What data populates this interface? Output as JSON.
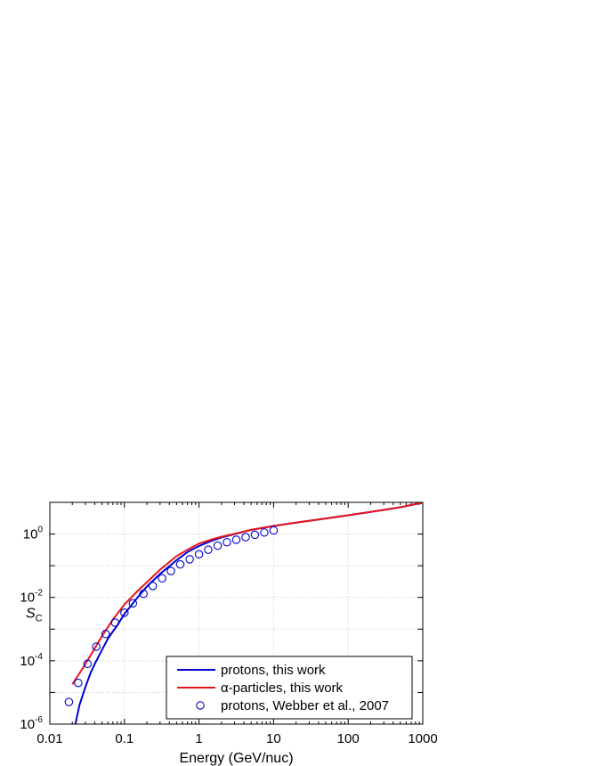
{
  "chart_data": {
    "type": "line",
    "xlabel": "Energy (GeV/nuc)",
    "ylabel_main": "S",
    "ylabel_sub": "C",
    "xscale": "log",
    "yscale": "log",
    "xlim": [
      0.01,
      1000
    ],
    "ylim": [
      1e-06,
      10
    ],
    "grid": true,
    "legend_position": "bottom-right",
    "x_ticks": [
      {
        "value": 0.01,
        "label": "0.01"
      },
      {
        "value": 0.1,
        "label": "0.1"
      },
      {
        "value": 1,
        "label": "1"
      },
      {
        "value": 10,
        "label": "10"
      },
      {
        "value": 100,
        "label": "100"
      },
      {
        "value": 1000,
        "label": "1000"
      }
    ],
    "y_ticks": [
      {
        "value": 1e-06,
        "base": "10",
        "exp": "-6"
      },
      {
        "value": 0.0001,
        "base": "10",
        "exp": "-4"
      },
      {
        "value": 0.01,
        "base": "10",
        "exp": "-2"
      },
      {
        "value": 1,
        "base": "10",
        "exp": "0"
      }
    ],
    "series": [
      {
        "name": "protons, this work",
        "kind": "line",
        "color": "#0000cc",
        "x": [
          0.022,
          0.025,
          0.03,
          0.035,
          0.04,
          0.05,
          0.06,
          0.08,
          0.1,
          0.15,
          0.2,
          0.3,
          0.5,
          0.7,
          1,
          1.5,
          2,
          3,
          5,
          10,
          20,
          50,
          100,
          200,
          500,
          1000
        ],
        "y": [
          1e-06,
          4e-06,
          1.5e-05,
          4e-05,
          8e-05,
          0.00022,
          0.0005,
          0.0013,
          0.003,
          0.01,
          0.022,
          0.055,
          0.15,
          0.27,
          0.42,
          0.62,
          0.78,
          1.0,
          1.35,
          1.8,
          2.3,
          3.1,
          3.9,
          5.0,
          7.0,
          9.8
        ]
      },
      {
        "name": "α-particles, this work",
        "kind": "line",
        "color": "#e8141c",
        "x": [
          0.02,
          0.025,
          0.03,
          0.04,
          0.05,
          0.07,
          0.1,
          0.15,
          0.2,
          0.3,
          0.5,
          0.7,
          1,
          1.5,
          2,
          3,
          5,
          10,
          20,
          50,
          100,
          200,
          500,
          1000
        ],
        "y": [
          1.8e-05,
          4e-05,
          8e-05,
          0.00025,
          0.0006,
          0.002,
          0.006,
          0.016,
          0.03,
          0.075,
          0.2,
          0.32,
          0.5,
          0.68,
          0.82,
          1.02,
          1.35,
          1.8,
          2.3,
          3.1,
          3.9,
          5.0,
          7.0,
          9.8
        ]
      },
      {
        "name": "protons, Webber et al., 2007",
        "kind": "scatter",
        "color": "#0000cc",
        "x": [
          0.018,
          0.024,
          0.032,
          0.042,
          0.056,
          0.075,
          0.1,
          0.13,
          0.18,
          0.24,
          0.32,
          0.42,
          0.56,
          0.75,
          1.0,
          1.33,
          1.78,
          2.37,
          3.16,
          4.22,
          5.62,
          7.5,
          10
        ],
        "y": [
          5e-06,
          2e-05,
          8e-05,
          0.00028,
          0.0007,
          0.0016,
          0.0033,
          0.0065,
          0.013,
          0.023,
          0.04,
          0.068,
          0.11,
          0.16,
          0.23,
          0.32,
          0.43,
          0.55,
          0.66,
          0.8,
          0.95,
          1.12,
          1.3
        ]
      }
    ]
  }
}
